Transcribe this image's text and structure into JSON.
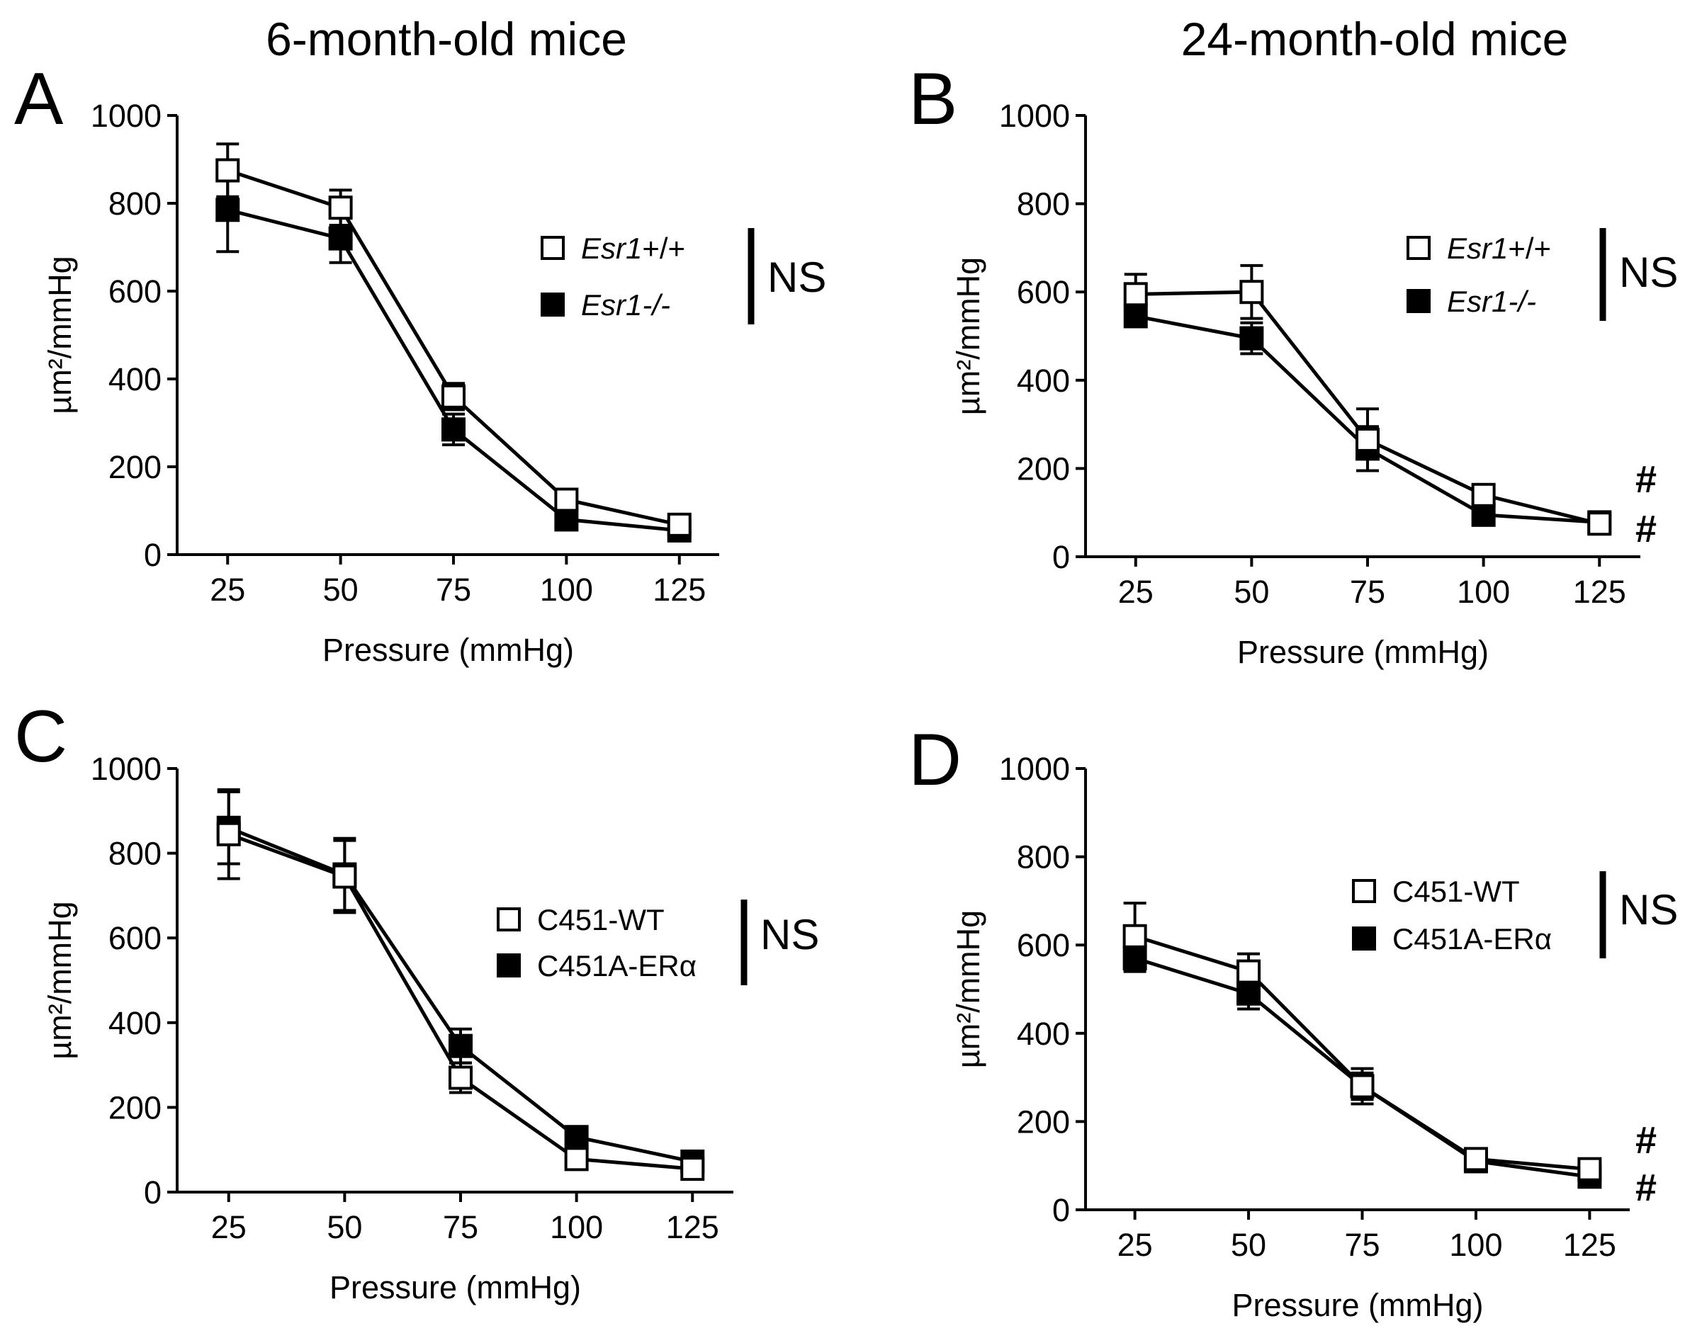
{
  "column_titles": [
    "6-month-old mice",
    "24-month-old mice"
  ],
  "chart_data": [
    {
      "panel": "A",
      "type": "line",
      "x": [
        25,
        50,
        75,
        100,
        125
      ],
      "xlabel": "Pressure (mmHg)",
      "ylabel": "µm²/mmHg",
      "ylim": [
        0,
        1000
      ],
      "yticks": [
        0,
        200,
        400,
        600,
        800,
        1000
      ],
      "series": [
        {
          "name": "Esr1+/+",
          "italic_part": "Esr1",
          "suffix": "+/+",
          "marker": "open-square",
          "values": [
            875,
            790,
            360,
            125,
            68
          ],
          "errors": [
            60,
            40,
            30,
            15,
            10
          ]
        },
        {
          "name": "Esr1-/-",
          "italic_part": "Esr1-/-",
          "suffix": "",
          "marker": "filled-square",
          "values": [
            785,
            720,
            285,
            80,
            55
          ],
          "errors": [
            95,
            55,
            35,
            15,
            10
          ]
        }
      ],
      "annotation": "NS",
      "right_marks": []
    },
    {
      "panel": "B",
      "type": "line",
      "x": [
        25,
        50,
        75,
        100,
        125
      ],
      "xlabel": "Pressure (mmHg)",
      "ylabel": "µm²/mmHg",
      "ylim": [
        0,
        1000
      ],
      "yticks": [
        0,
        200,
        400,
        600,
        800,
        1000
      ],
      "series": [
        {
          "name": "Esr1+/+",
          "italic_part": "Esr1",
          "suffix": "+/+",
          "marker": "open-square",
          "values": [
            595,
            600,
            265,
            140,
            75
          ],
          "errors": [
            45,
            60,
            70,
            15,
            10
          ]
        },
        {
          "name": "Esr1-/-",
          "italic_part": "Esr1-/-",
          "suffix": "",
          "marker": "filled-square",
          "values": [
            545,
            495,
            245,
            95,
            78
          ],
          "errors": [
            15,
            35,
            50,
            15,
            10
          ]
        }
      ],
      "annotation": "NS",
      "right_marks": [
        "#",
        "#"
      ]
    },
    {
      "panel": "C",
      "type": "line",
      "x": [
        25,
        50,
        75,
        100,
        125
      ],
      "xlabel": "Pressure (mmHg)",
      "ylabel": "µm²/mmHg",
      "ylim": [
        0,
        1000
      ],
      "yticks": [
        0,
        200,
        400,
        600,
        800,
        1000
      ],
      "series": [
        {
          "name": "C451-WT",
          "italic_part": "",
          "suffix": "C451-WT",
          "marker": "open-square",
          "values": [
            845,
            745,
            270,
            78,
            55
          ],
          "errors": [
            105,
            85,
            35,
            10,
            10
          ]
        },
        {
          "name": "C451A-ERα",
          "italic_part": "",
          "suffix": "C451A-ERα",
          "marker": "filled-square",
          "values": [
            860,
            750,
            345,
            130,
            72
          ],
          "errors": [
            85,
            85,
            40,
            15,
            10
          ]
        }
      ],
      "annotation": "NS",
      "right_marks": []
    },
    {
      "panel": "D",
      "type": "line",
      "x": [
        25,
        50,
        75,
        100,
        125
      ],
      "xlabel": "Pressure (mmHg)",
      "ylabel": "µm²/mmHg",
      "ylim": [
        0,
        1000
      ],
      "yticks": [
        0,
        200,
        400,
        600,
        800,
        1000
      ],
      "series": [
        {
          "name": "C451-WT",
          "italic_part": "",
          "suffix": "C451-WT",
          "marker": "open-square",
          "values": [
            620,
            540,
            280,
            115,
            92
          ],
          "errors": [
            75,
            40,
            30,
            15,
            10
          ]
        },
        {
          "name": "C451A-ERα",
          "italic_part": "",
          "suffix": "C451A-ERα",
          "marker": "filled-square",
          "values": [
            570,
            490,
            280,
            110,
            75
          ],
          "errors": [
            30,
            35,
            40,
            15,
            10
          ]
        }
      ],
      "annotation": "NS",
      "right_marks": [
        "#",
        "#"
      ]
    }
  ]
}
